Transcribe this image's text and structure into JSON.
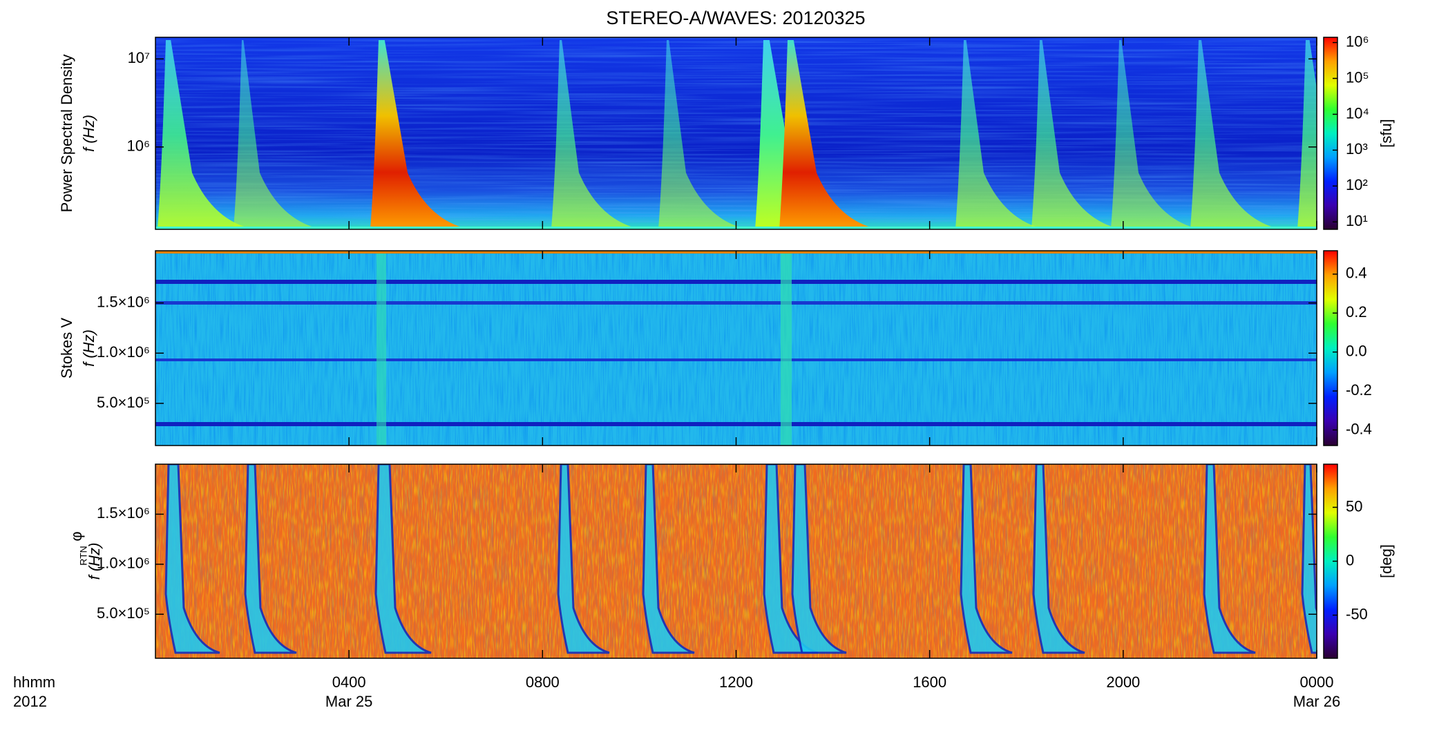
{
  "title": "STEREO-A/WAVES: 20120325",
  "colormap": [
    "#2a0030",
    "#3a00b0",
    "#0020ff",
    "#00a0ff",
    "#00f0c0",
    "#30ff30",
    "#e0ff00",
    "#ffa000",
    "#ff0000"
  ],
  "x_axis": {
    "xlim": [
      0,
      24
    ],
    "xticks": [
      {
        "value": 4,
        "label": "0400"
      },
      {
        "value": 8,
        "label": "0800"
      },
      {
        "value": 12,
        "label": "1200"
      },
      {
        "value": 16,
        "label": "1600"
      },
      {
        "value": 20,
        "label": "2000"
      },
      {
        "value": 24,
        "label": "0000"
      }
    ],
    "date_labels": [
      {
        "value": 4,
        "label": "Mar 25"
      },
      {
        "value": 24,
        "label": "Mar 26"
      }
    ],
    "unit_label": "hhmm",
    "year_label": "2012"
  },
  "chart_data": [
    {
      "type": "heatmap",
      "quantity": "Power Spectral Density",
      "ylabel": "f (Hz)",
      "log_y": true,
      "ylim": [
        116000,
        17600000
      ],
      "yticks": [
        {
          "value": 1000000,
          "label": "10⁶"
        },
        {
          "value": 10000000,
          "label": "10⁷"
        }
      ],
      "colorbar": {
        "log": true,
        "clim": [
          6.2,
          1400000
        ],
        "label": "[sfu]",
        "cticks": [
          {
            "value": 10,
            "label": "10¹"
          },
          {
            "value": 100,
            "label": "10²"
          },
          {
            "value": 1000,
            "label": "10³"
          },
          {
            "value": 10000,
            "label": "10⁴"
          },
          {
            "value": 100000,
            "label": "10⁵"
          },
          {
            "value": 1000000,
            "label": "10⁶"
          }
        ]
      }
    },
    {
      "type": "heatmap",
      "quantity": "Stokes V",
      "ylabel": "f (Hz)",
      "log_y": false,
      "ylim": [
        80000,
        2020000
      ],
      "yticks": [
        {
          "value": 500000,
          "label": "5.0×10⁵"
        },
        {
          "value": 1000000,
          "label": "1.0×10⁶"
        },
        {
          "value": 1500000,
          "label": "1.5×10⁶"
        }
      ],
      "colorbar": {
        "log": false,
        "clim": [
          -0.48,
          0.52
        ],
        "cticks": [
          -0.4,
          -0.2,
          {
            "value": 0,
            "label": "0.0"
          },
          0.2,
          0.4
        ]
      }
    },
    {
      "type": "heatmap",
      "quantity": "φ",
      "quantity_sub": "RTN",
      "ylabel": "f (Hz)",
      "log_y": false,
      "ylim": [
        60000,
        2000000
      ],
      "yticks": [
        {
          "value": 500000,
          "label": "5.0×10⁵"
        },
        {
          "value": 1000000,
          "label": "1.0×10⁶"
        },
        {
          "value": 1500000,
          "label": "1.5×10⁶"
        }
      ],
      "colorbar": {
        "log": false,
        "clim": [
          -90,
          90
        ],
        "label": "[deg]",
        "cticks": [
          -50,
          0,
          50
        ]
      }
    }
  ]
}
